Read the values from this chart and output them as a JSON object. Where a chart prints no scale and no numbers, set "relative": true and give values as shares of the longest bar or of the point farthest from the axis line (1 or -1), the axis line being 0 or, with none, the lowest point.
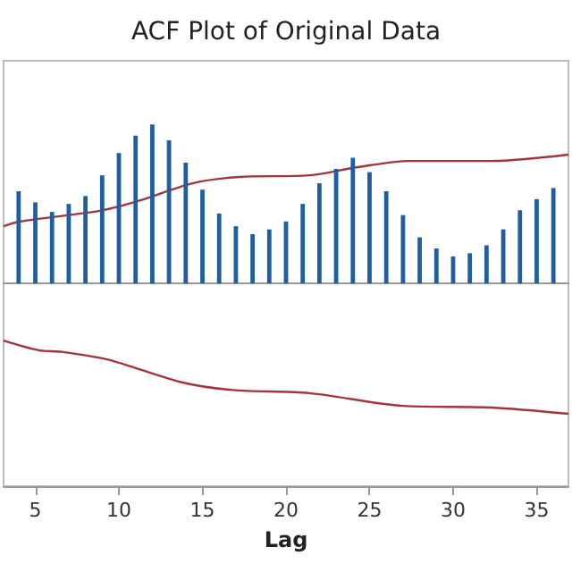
{
  "chart_data": {
    "type": "bar",
    "title": "ACF Plot of Original Data",
    "xlabel": "Lag",
    "relative": true,
    "xlim": [
      3.1,
      36.9
    ],
    "xticks": [
      5,
      10,
      15,
      20,
      25,
      30,
      35
    ],
    "grid": false,
    "series": [
      {
        "color": "#1f5fa0",
        "x": [
          4,
          5,
          6,
          7,
          8,
          9,
          10,
          11,
          12,
          13,
          14,
          15,
          16,
          17,
          18,
          19,
          20,
          21,
          22,
          23,
          24,
          25,
          26,
          27,
          28,
          29,
          30,
          31,
          32,
          33,
          34,
          35,
          36
        ],
        "values": [
          0.58,
          0.51,
          0.45,
          0.5,
          0.55,
          0.68,
          0.82,
          0.93,
          1,
          0.9,
          0.76,
          0.59,
          0.44,
          0.36,
          0.31,
          0.34,
          0.39,
          0.5,
          0.63,
          0.72,
          0.79,
          0.7,
          0.58,
          0.43,
          0.29,
          0.22,
          0.17,
          0.19,
          0.24,
          0.34,
          0.46,
          0.53,
          0.6
        ]
      },
      {
        "type": "line",
        "color": "#a0353a",
        "marker": "none",
        "x": [
          3.1,
          4.1,
          9.0,
          11.2,
          14.4,
          17.2,
          21.4,
          24.2,
          27.4,
          32.3,
          36.9
        ],
        "values": [
          0.36,
          0.39,
          0.46,
          0.52,
          0.63,
          0.67,
          0.68,
          0.73,
          0.77,
          0.77,
          0.81
        ]
      },
      {
        "type": "line",
        "color": "#a0353a",
        "marker": "none",
        "x": [
          3.1,
          5.2,
          6.6,
          9.4,
          13.7,
          16.8,
          21.4,
          27.0,
          32.3,
          36.9
        ],
        "values": [
          -0.36,
          -0.42,
          -0.43,
          -0.48,
          -0.62,
          -0.67,
          -0.69,
          -0.77,
          -0.78,
          -0.82
        ]
      }
    ]
  }
}
